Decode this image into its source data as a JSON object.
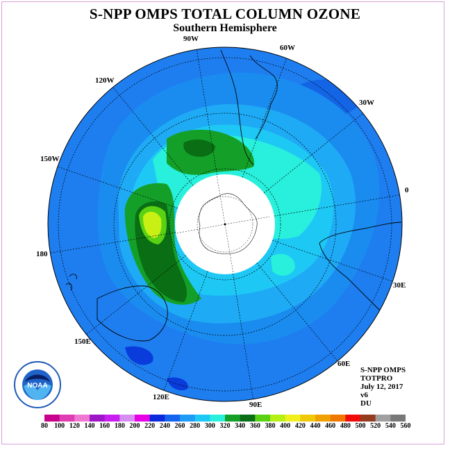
{
  "title": "S-NPP OMPS TOTAL COLUMN OZONE",
  "subtitle": "Southern Hemisphere",
  "longitude_labels": [
    "90W",
    "60W",
    "30W",
    "0",
    "30E",
    "60E",
    "90E",
    "120E",
    "150E",
    "180",
    "150W",
    "120W"
  ],
  "info": {
    "instrument": "S-NPP OMPS",
    "product": "TOTPRO",
    "date": "July 12, 2017",
    "version": "v6",
    "units": "DU"
  },
  "logo_text": "NOAA",
  "legend": {
    "ticks": [
      "80",
      "100",
      "120",
      "140",
      "160",
      "180",
      "200",
      "220",
      "240",
      "260",
      "280",
      "300",
      "320",
      "340",
      "360",
      "380",
      "400",
      "420",
      "440",
      "460",
      "480",
      "500",
      "520",
      "540",
      "560"
    ],
    "colors": [
      "#c8008c",
      "#e03cb4",
      "#f078d2",
      "#9e16c8",
      "#c81ef0",
      "#d68cf0",
      "#e600e6",
      "#0a28dc",
      "#1464f0",
      "#1e9bf5",
      "#1ec8f5",
      "#28f0dc",
      "#14a028",
      "#0a6e14",
      "#5ad214",
      "#b4f014",
      "#f0f01e",
      "#f0c80a",
      "#f0a000",
      "#f07800",
      "#f00a0a",
      "#963c1e",
      "#a0a0a0",
      "#787878"
    ]
  },
  "colors": {
    "background_ozone": "#1e7ef0",
    "pole_mask": "#ffffff",
    "frame": "#d9a0d9"
  }
}
